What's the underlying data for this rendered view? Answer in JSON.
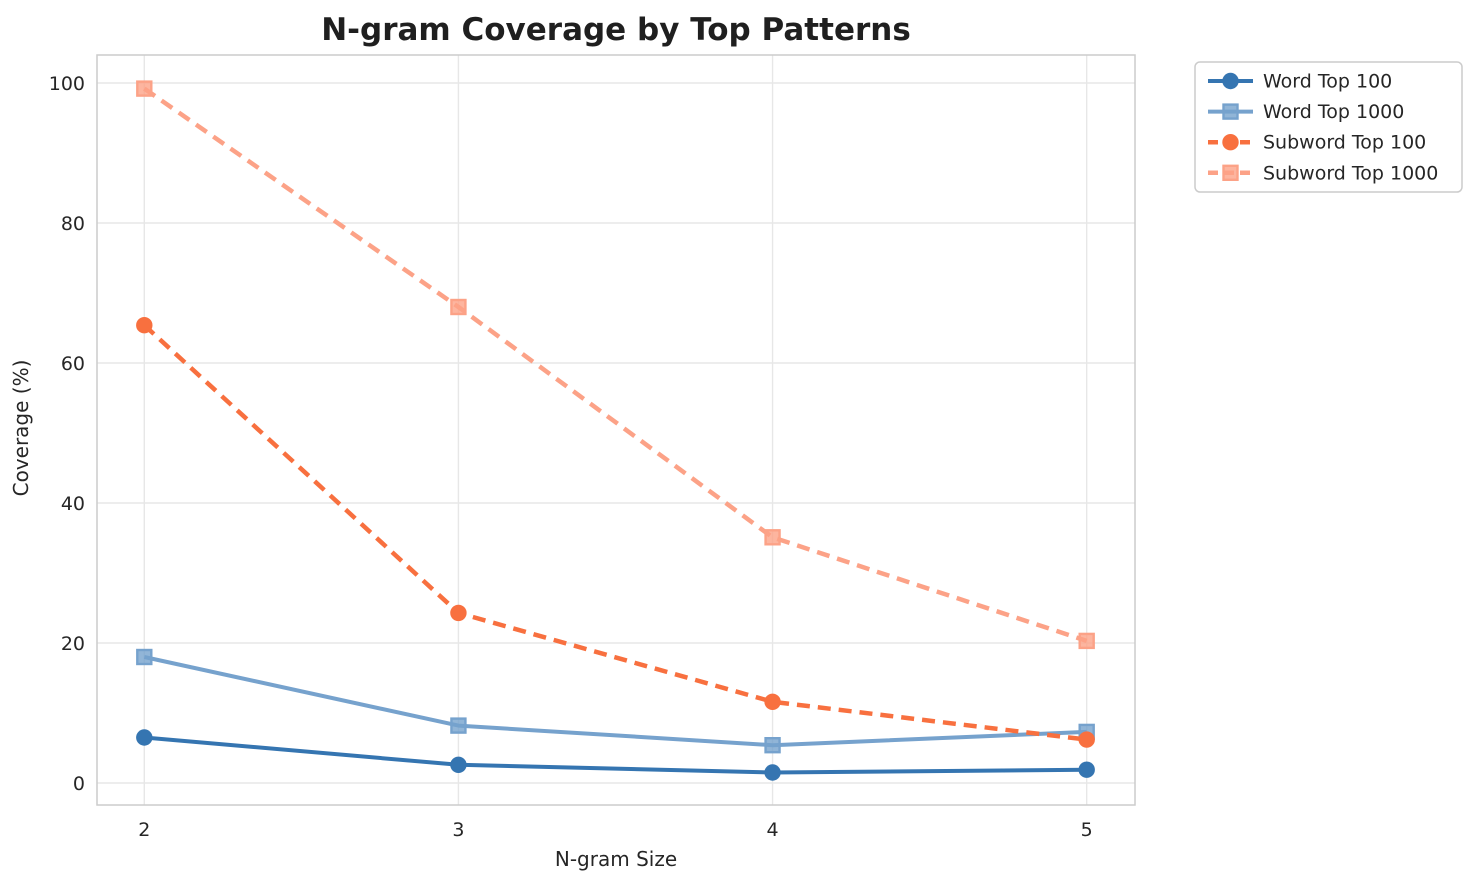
{
  "title": "N-gram Coverage by Top Patterns",
  "chart_data": {
    "type": "line",
    "title": "N-gram Coverage by Top Patterns",
    "xlabel": "N-gram Size",
    "ylabel": "Coverage (%)",
    "x": [
      2,
      3,
      4,
      5
    ],
    "xtick_labels": [
      "2",
      "3",
      "4",
      "5"
    ],
    "ytick_values": [
      0,
      20,
      40,
      60,
      80,
      100
    ],
    "ytick_labels": [
      "0",
      "20",
      "40",
      "60",
      "80",
      "100"
    ],
    "ylim": [
      -3.1,
      104.3
    ],
    "xlim": [
      1.85,
      5.15
    ],
    "grid": true,
    "legend_position": "outside-top-right",
    "series": [
      {
        "name": "Word Top 100",
        "values": [
          6.5,
          2.6,
          1.5,
          1.9
        ],
        "color": "#3575b1",
        "marker": "circle",
        "line": "solid"
      },
      {
        "name": "Word Top 1000",
        "values": [
          18.0,
          8.2,
          5.4,
          7.3
        ],
        "color": "#76a2cd",
        "marker": "square",
        "line": "solid"
      },
      {
        "name": "Subword Top 100",
        "values": [
          65.4,
          24.3,
          11.6,
          6.2
        ],
        "color": "#f8703f",
        "marker": "circle",
        "line": "dashed"
      },
      {
        "name": "Subword Top 1000",
        "values": [
          99.2,
          68.0,
          35.1,
          20.3
        ],
        "color": "#fca287",
        "marker": "square",
        "line": "dashed"
      }
    ]
  },
  "colors": {
    "grid": "#e7e7e7",
    "spine": "#cccccc",
    "background": "#ffffff",
    "text": "#262626"
  }
}
